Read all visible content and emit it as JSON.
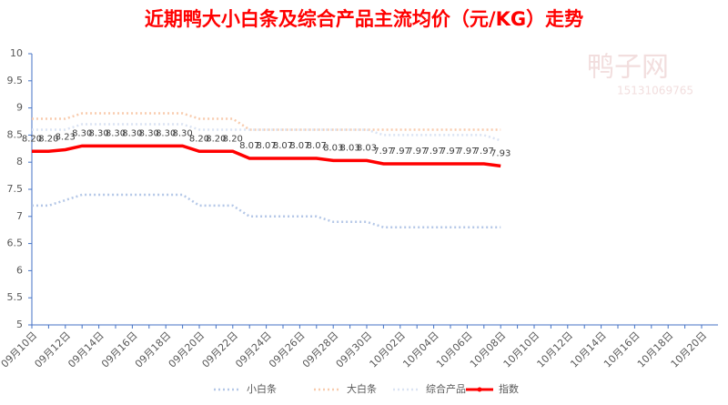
{
  "chart_data": {
    "type": "line",
    "title": "近期鸭大小白条及综合产品主流均价（元/KG）走势",
    "watermark": [
      "鸭子网",
      "15131069765"
    ],
    "categories": [
      "09月10日",
      null,
      "09月12日",
      null,
      "09月14日",
      null,
      "09月16日",
      null,
      "09月18日",
      null,
      "09月20日",
      null,
      "09月22日",
      null,
      "09月24日",
      null,
      "09月26日",
      null,
      "09月28日",
      null,
      "09月30日",
      null,
      "10月02日",
      null,
      "10月04日",
      null,
      "10月06日",
      null,
      "10月08日",
      null,
      "10月10日",
      null,
      "10月12日",
      null,
      "10月14日",
      null,
      "10月16日",
      null,
      "10月18日",
      null,
      "10月20日"
    ],
    "series": [
      {
        "name": "小白条",
        "color": "#b4c7e7",
        "style": "dotted",
        "values": [
          7.2,
          7.2,
          7.3,
          7.4,
          7.4,
          7.4,
          7.4,
          7.4,
          7.4,
          7.4,
          7.2,
          7.2,
          7.2,
          7.0,
          7.0,
          7.0,
          7.0,
          7.0,
          6.9,
          6.9,
          6.9,
          6.8,
          6.8,
          6.8,
          6.8,
          6.8,
          6.8,
          6.8,
          6.8,
          null,
          null,
          null,
          null,
          null,
          null,
          null,
          null,
          null,
          null,
          null,
          null
        ]
      },
      {
        "name": "大白条",
        "color": "#f8cbad",
        "style": "dotted",
        "values": [
          8.8,
          8.8,
          8.8,
          8.9,
          8.9,
          8.9,
          8.9,
          8.9,
          8.9,
          8.9,
          8.8,
          8.8,
          8.8,
          8.6,
          8.6,
          8.6,
          8.6,
          8.6,
          8.6,
          8.6,
          8.6,
          8.6,
          8.6,
          8.6,
          8.6,
          8.6,
          8.6,
          8.6,
          8.6,
          null,
          null,
          null,
          null,
          null,
          null,
          null,
          null,
          null,
          null,
          null,
          null
        ]
      },
      {
        "name": "综合产品",
        "color": "#dae3f3",
        "style": "dotted",
        "values": [
          8.6,
          8.6,
          8.6,
          8.7,
          8.7,
          8.7,
          8.7,
          8.7,
          8.7,
          8.7,
          8.6,
          8.6,
          8.6,
          8.6,
          8.6,
          8.6,
          8.6,
          8.6,
          8.6,
          8.6,
          8.6,
          8.5,
          8.5,
          8.5,
          8.5,
          8.5,
          8.5,
          8.5,
          8.4,
          null,
          null,
          null,
          null,
          null,
          null,
          null,
          null,
          null,
          null,
          null,
          null
        ]
      },
      {
        "name": "指数",
        "color": "#ff0000",
        "style": "solid",
        "values": [
          8.2,
          8.2,
          8.23,
          8.3,
          8.3,
          8.3,
          8.3,
          8.3,
          8.3,
          8.3,
          8.2,
          8.2,
          8.2,
          8.07,
          8.07,
          8.07,
          8.07,
          8.07,
          8.03,
          8.03,
          8.03,
          7.97,
          7.97,
          7.97,
          7.97,
          7.97,
          7.97,
          7.97,
          7.93,
          null,
          null,
          null,
          null,
          null,
          null,
          null,
          null,
          null,
          null,
          null,
          null
        ],
        "value_labels": [
          "8.20",
          "8.20",
          "8.23",
          "8.30",
          "8.30",
          "8.30",
          "8.30",
          "8.30",
          "8.30",
          "8.30",
          "8.20",
          "8.20",
          "8.20",
          "8.07",
          "8.07",
          "8.07",
          "8.07",
          "8.07",
          "8.03",
          "8.03",
          "8.03",
          "7.97",
          "7.97",
          "7.97",
          "7.97",
          "7.97",
          "7.97",
          "7.97",
          "7.93",
          null,
          null,
          null,
          null,
          null,
          null,
          null,
          null,
          null,
          null,
          null,
          null
        ]
      }
    ],
    "ylim": [
      5,
      10
    ],
    "yticks": [
      5,
      5.5,
      6,
      6.5,
      7,
      7.5,
      8,
      8.5,
      9,
      9.5,
      10
    ],
    "grid": false,
    "legend": "bottom"
  }
}
